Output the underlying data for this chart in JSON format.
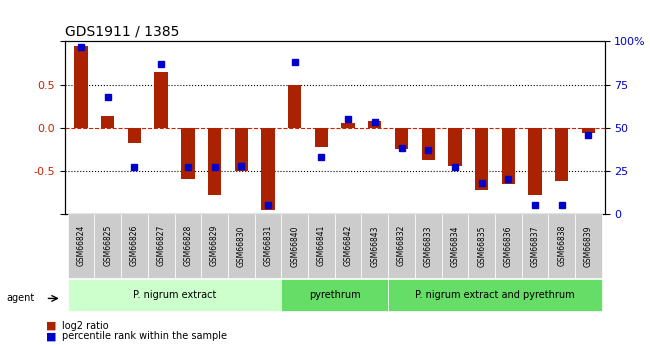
{
  "title": "GDS1911 / 1385",
  "samples": [
    "GSM66824",
    "GSM66825",
    "GSM66826",
    "GSM66827",
    "GSM66828",
    "GSM66829",
    "GSM66830",
    "GSM66831",
    "GSM66840",
    "GSM66841",
    "GSM66842",
    "GSM66843",
    "GSM66832",
    "GSM66833",
    "GSM66834",
    "GSM66835",
    "GSM66836",
    "GSM66837",
    "GSM66838",
    "GSM66839"
  ],
  "log2_ratio": [
    0.95,
    0.13,
    -0.18,
    0.65,
    -0.6,
    -0.78,
    -0.5,
    -0.95,
    0.5,
    -0.22,
    0.05,
    0.08,
    -0.25,
    -0.38,
    -0.45,
    -0.72,
    -0.65,
    -0.78,
    -0.62,
    -0.06
  ],
  "percentile": [
    97,
    68,
    27,
    87,
    27,
    27,
    28,
    5,
    88,
    33,
    55,
    53,
    38,
    37,
    27,
    18,
    20,
    5,
    5,
    46
  ],
  "groups": [
    {
      "label": "P. nigrum extract",
      "start": 0,
      "end": 8,
      "color": "#aaffaa"
    },
    {
      "label": "pyrethrum",
      "start": 8,
      "end": 12,
      "color": "#55dd55"
    },
    {
      "label": "P. nigrum extract and pyrethrum",
      "start": 12,
      "end": 20,
      "color": "#55dd55"
    }
  ],
  "bar_color": "#aa2200",
  "dot_color": "#0000cc",
  "bg_color": "#f0f0f0",
  "ylim_left": [
    -1.0,
    1.0
  ],
  "ylim_right": [
    0,
    100
  ],
  "yticks_left": [
    -1.0,
    -0.5,
    0.0,
    0.5,
    1.0
  ],
  "yticks_right": [
    0,
    25,
    50,
    75,
    100
  ],
  "hline_red": 0.0,
  "dotted_lines": [
    -0.5,
    0.5
  ],
  "legend_log2": "log2 ratio",
  "legend_pct": "percentile rank within the sample"
}
